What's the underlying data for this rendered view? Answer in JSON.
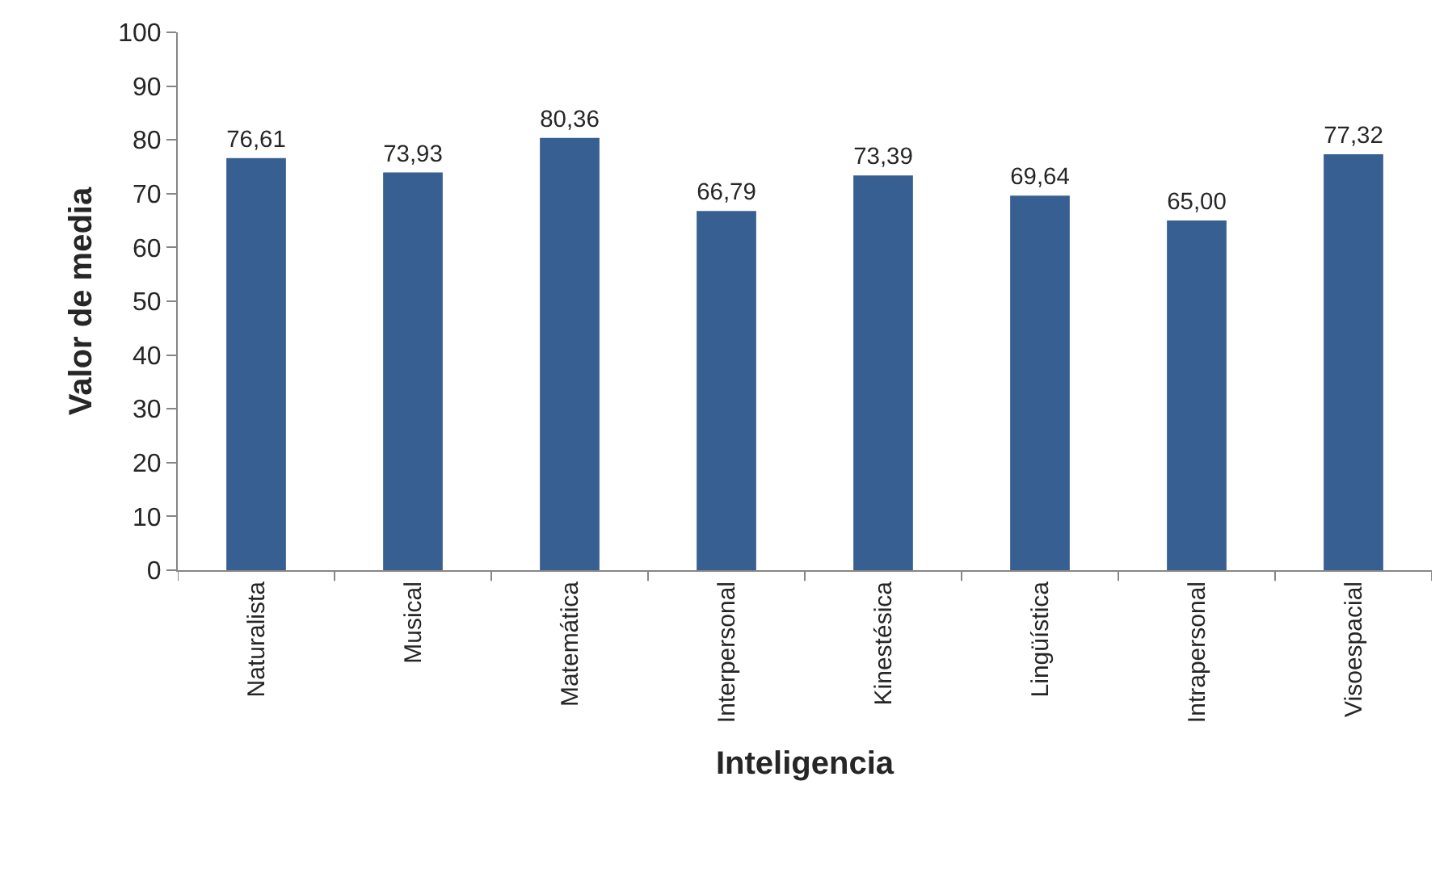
{
  "chart_data": {
    "type": "bar",
    "xlabel": "Inteligencia",
    "ylabel": "Valor de media",
    "categories": [
      "Naturalista",
      "Musical",
      "Matemática",
      "Interpersonal",
      "Kinestésica",
      "Lingüística",
      "Intrapersonal",
      "Visoespacial"
    ],
    "values": [
      76.61,
      73.93,
      80.36,
      66.79,
      73.39,
      69.64,
      65.0,
      77.32
    ],
    "value_labels": [
      "76,61",
      "73,93",
      "80,36",
      "66,79",
      "73,39",
      "69,64",
      "65,00",
      "77,32"
    ],
    "color": "#375f91",
    "ylim": [
      0,
      100
    ],
    "yticks": [
      0,
      10,
      20,
      30,
      40,
      50,
      60,
      70,
      80,
      90,
      100
    ]
  }
}
